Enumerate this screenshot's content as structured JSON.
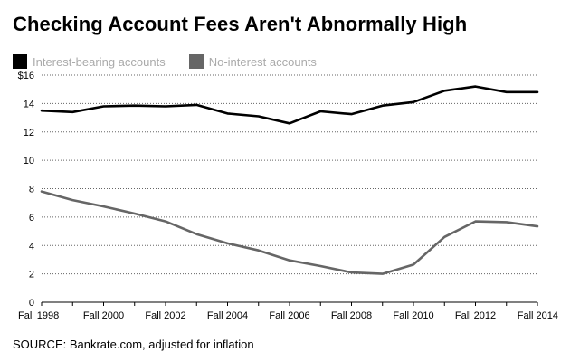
{
  "chart_data": {
    "type": "line",
    "title": "Checking Account Fees Aren't Abnormally High",
    "xlabel": "",
    "ylabel": "",
    "x": [
      1998,
      1999,
      2000,
      2001,
      2002,
      2003,
      2004,
      2005,
      2006,
      2007,
      2008,
      2009,
      2010,
      2011,
      2012,
      2013,
      2014
    ],
    "xlim": [
      1998,
      2014
    ],
    "x_ticks": [
      1998,
      2000,
      2002,
      2004,
      2006,
      2008,
      2010,
      2012,
      2014
    ],
    "x_tick_labels": [
      "Fall 1998",
      "Fall 2000",
      "Fall 2002",
      "Fall 2004",
      "Fall 2006",
      "Fall 2008",
      "Fall 2010",
      "Fall 2012",
      "Fall 2014"
    ],
    "ylim": [
      0,
      16
    ],
    "y_ticks": [
      0,
      2,
      4,
      6,
      8,
      10,
      12,
      14,
      16
    ],
    "y_tick_labels": [
      "0",
      "2",
      "4",
      "6",
      "8",
      "10",
      "12",
      "14",
      "$16"
    ],
    "grid": "horizontal dotted",
    "legend_position": "top-left",
    "series": [
      {
        "name": "Interest-bearing accounts",
        "color": "#000000",
        "values": [
          13.5,
          13.4,
          13.8,
          13.85,
          13.8,
          13.9,
          13.3,
          13.1,
          12.6,
          13.45,
          13.25,
          13.85,
          14.1,
          14.9,
          15.2,
          14.8,
          14.8
        ]
      },
      {
        "name": "No-interest accounts",
        "color": "#666666",
        "values": [
          7.8,
          7.2,
          6.75,
          6.25,
          5.7,
          4.8,
          4.15,
          3.65,
          2.95,
          2.55,
          2.1,
          2.0,
          2.65,
          4.6,
          5.7,
          5.65,
          5.35
        ]
      }
    ],
    "source": "SOURCE: Bankrate.com, adjusted for inflation"
  }
}
